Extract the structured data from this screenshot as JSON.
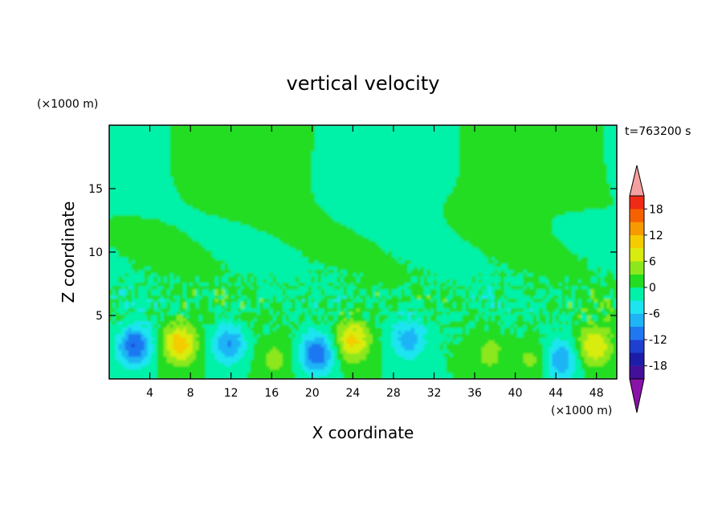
{
  "chart_data": {
    "type": "heatmap",
    "title": "vertical velocity",
    "xlabel": "X coordinate",
    "ylabel": "Z coordinate",
    "x_unit": "(×1000 m)",
    "y_unit": "(×1000 m)",
    "time_label": "t=763200 s",
    "xlim": [
      0,
      50
    ],
    "ylim": [
      0,
      20
    ],
    "x_ticks": [
      4,
      8,
      12,
      16,
      20,
      24,
      28,
      32,
      36,
      40,
      44,
      48
    ],
    "y_ticks": [
      5,
      10,
      15
    ],
    "colorbar": {
      "ticks": [
        18,
        12,
        6,
        0,
        -6,
        -12,
        -18
      ],
      "levels": [
        -21,
        -18,
        -15,
        -12,
        -9,
        -6,
        -3,
        0,
        3,
        6,
        9,
        12,
        15,
        18,
        21
      ],
      "colors": [
        "#44109a",
        "#1c1ca8",
        "#1f3fd0",
        "#1f78f0",
        "#1fb4f5",
        "#1ee4f0",
        "#00f2a8",
        "#22dd22",
        "#8ce81c",
        "#d8ec10",
        "#f4cc00",
        "#f79a00",
        "#f66200",
        "#f02a14"
      ],
      "over_color": "#f5a0a0",
      "under_color": "#8a12aa",
      "extend": "both"
    },
    "features": [
      {
        "x": 2.5,
        "z": 2.6,
        "w": -12,
        "note": "downdraft"
      },
      {
        "x": 7.0,
        "z": 2.8,
        "w": 11,
        "note": "updraft"
      },
      {
        "x": 11.8,
        "z": 2.8,
        "w": -9,
        "note": "downdraft"
      },
      {
        "x": 16.3,
        "z": 1.5,
        "w": 4,
        "note": "updraft"
      },
      {
        "x": 20.5,
        "z": 2.0,
        "w": -12,
        "note": "downdraft"
      },
      {
        "x": 24.0,
        "z": 3.0,
        "w": 10,
        "note": "updraft"
      },
      {
        "x": 29.5,
        "z": 3.2,
        "w": -8,
        "note": "downdraft"
      },
      {
        "x": 37.5,
        "z": 2.0,
        "w": 4,
        "note": "updraft"
      },
      {
        "x": 41.8,
        "z": 1.5,
        "w": 4,
        "note": "updraft"
      },
      {
        "x": 44.5,
        "z": 1.5,
        "w": -9,
        "note": "downdraft"
      },
      {
        "x": 47.8,
        "z": 2.6,
        "w": 9,
        "note": "updraft"
      }
    ]
  }
}
